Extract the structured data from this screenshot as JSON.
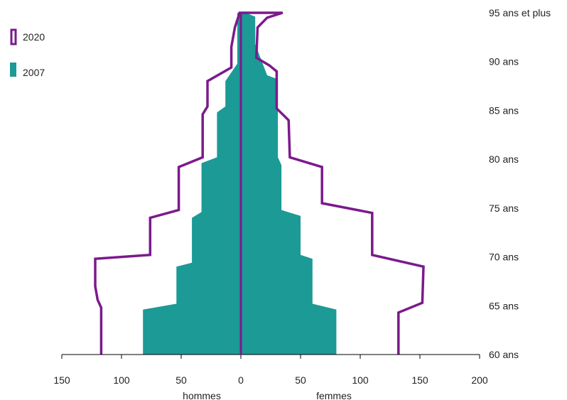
{
  "chart_data": {
    "type": "area",
    "subtype": "population-pyramid",
    "xlabel_left": "hommes",
    "xlabel_right": "femmes",
    "xlim": [
      -150,
      200
    ],
    "x_ticks": [
      {
        "value": -150,
        "label": "150"
      },
      {
        "value": -100,
        "label": "100"
      },
      {
        "value": -50,
        "label": "50"
      },
      {
        "value": 0,
        "label": "0"
      },
      {
        "value": 50,
        "label": "50"
      },
      {
        "value": 100,
        "label": "100"
      },
      {
        "value": 150,
        "label": "150"
      },
      {
        "value": 200,
        "label": "200"
      }
    ],
    "ylim": [
      60,
      95
    ],
    "age_labels": [
      {
        "age": 60,
        "label": "60 ans"
      },
      {
        "age": 65,
        "label": "65 ans"
      },
      {
        "age": 70,
        "label": "70 ans"
      },
      {
        "age": 75,
        "label": "75 ans"
      },
      {
        "age": 80,
        "label": "80 ans"
      },
      {
        "age": 85,
        "label": "85 ans"
      },
      {
        "age": 90,
        "label": "90 ans"
      },
      {
        "age": 95,
        "label": "95 ans et plus"
      }
    ],
    "legend_position": "top-left",
    "series": [
      {
        "name": "2020",
        "style": "outline",
        "color": "#7b1a8c",
        "men": [
          [
            60,
            -117
          ],
          [
            64.8,
            -117
          ],
          [
            65.6,
            -120
          ],
          [
            67,
            -122
          ],
          [
            69.8,
            -122
          ],
          [
            70.2,
            -76
          ],
          [
            74,
            -76
          ],
          [
            74.8,
            -52
          ],
          [
            79.2,
            -52
          ],
          [
            80.2,
            -32
          ],
          [
            84.6,
            -32
          ],
          [
            85.4,
            -28
          ],
          [
            88,
            -28
          ],
          [
            89.4,
            -8
          ],
          [
            91.5,
            -8
          ],
          [
            93.5,
            -5
          ],
          [
            95,
            -1
          ]
        ],
        "women": [
          [
            60,
            132
          ],
          [
            64.3,
            132
          ],
          [
            65.3,
            152
          ],
          [
            69,
            153
          ],
          [
            70.2,
            110
          ],
          [
            74.5,
            110
          ],
          [
            75.5,
            68
          ],
          [
            79.2,
            68
          ],
          [
            80.2,
            41
          ],
          [
            84,
            40
          ],
          [
            85.2,
            30
          ],
          [
            89,
            30
          ],
          [
            89.6,
            24
          ],
          [
            90.4,
            13
          ],
          [
            93.5,
            14
          ],
          [
            94.5,
            22
          ],
          [
            95,
            35
          ]
        ]
      },
      {
        "name": "2007",
        "style": "filled",
        "color": "#1b9a96",
        "men": [
          [
            60,
            -82
          ],
          [
            64.6,
            -82
          ],
          [
            65.2,
            -54
          ],
          [
            69,
            -54
          ],
          [
            69.4,
            -41
          ],
          [
            74,
            -41
          ],
          [
            74.6,
            -33
          ],
          [
            79.6,
            -33
          ],
          [
            80.2,
            -20
          ],
          [
            84.8,
            -20
          ],
          [
            85.4,
            -13
          ],
          [
            88,
            -13
          ],
          [
            89.8,
            -3
          ],
          [
            95,
            -3
          ]
        ],
        "women": [
          [
            60,
            80
          ],
          [
            64.6,
            80
          ],
          [
            65.2,
            60
          ],
          [
            69.8,
            60
          ],
          [
            70.2,
            50
          ],
          [
            74.2,
            50
          ],
          [
            74.8,
            34
          ],
          [
            79.4,
            34
          ],
          [
            80.2,
            31
          ],
          [
            88.2,
            31
          ],
          [
            88.6,
            22
          ],
          [
            91.8,
            12
          ],
          [
            94.6,
            12
          ],
          [
            95,
            4
          ]
        ]
      }
    ]
  }
}
